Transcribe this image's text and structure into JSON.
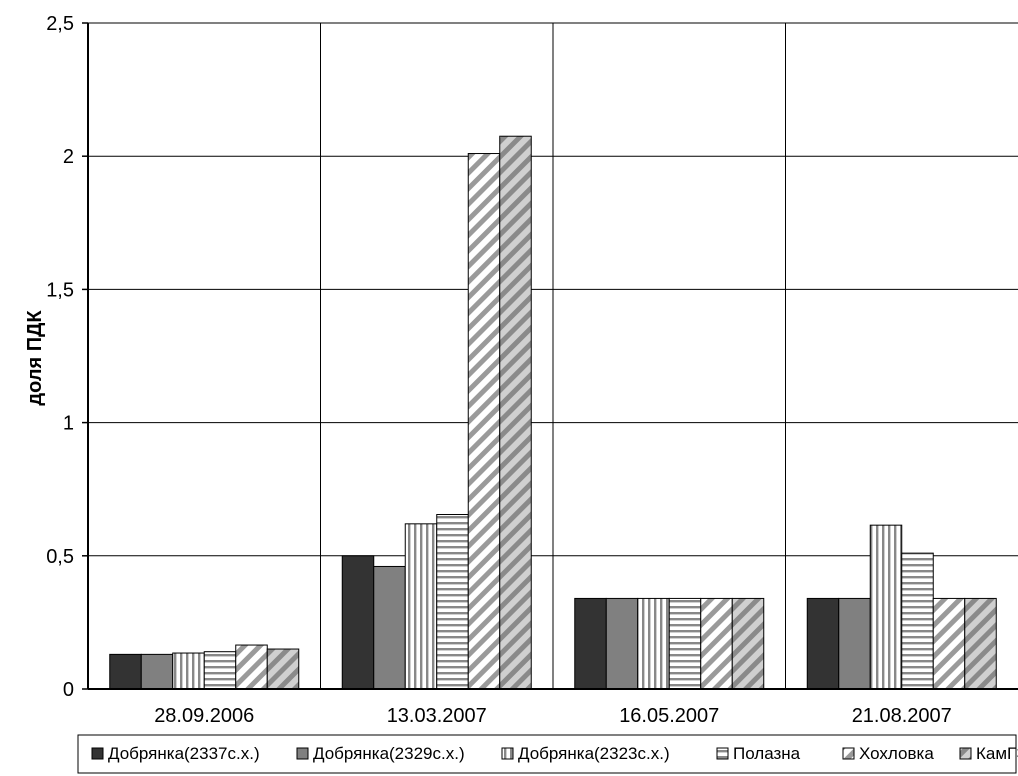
{
  "chart_data": {
    "type": "bar",
    "title": "",
    "xlabel": "",
    "ylabel": "доля ПДК",
    "ylim": [
      0,
      2.5
    ],
    "y_ticks": [
      "0",
      "0,5",
      "1",
      "1,5",
      "2",
      "2,5"
    ],
    "grid": true,
    "legend_position": "bottom",
    "categories": [
      "28.09.2006",
      "13.03.2007",
      "16.05.2007",
      "21.08.2007"
    ],
    "series": [
      {
        "name": "Добрянка(2337с.х.)",
        "pattern": "solid-dark",
        "color": "#333333",
        "values": [
          0.13,
          0.5,
          0.34,
          0.34
        ]
      },
      {
        "name": "Добрянка(2329с.х.)",
        "pattern": "solid-gray",
        "color": "#808080",
        "values": [
          0.13,
          0.46,
          0.34,
          0.34
        ]
      },
      {
        "name": "Добрянка(2323с.х.)",
        "pattern": "vertical-lines",
        "color": "#ffffff",
        "values": [
          0.135,
          0.62,
          0.34,
          0.615
        ]
      },
      {
        "name": "Полазна",
        "pattern": "horizontal-lines",
        "color": "#ffffff",
        "values": [
          0.14,
          0.655,
          0.34,
          0.51
        ]
      },
      {
        "name": "Хохловка",
        "pattern": "diagonal-stripes",
        "color": "#ffffff",
        "values": [
          0.165,
          2.01,
          0.34,
          0.34
        ]
      },
      {
        "name": "КамГЭС",
        "pattern": "gray-diagonal",
        "color": "#a0a0a0",
        "values": [
          0.15,
          2.075,
          0.34,
          0.34
        ]
      }
    ]
  }
}
